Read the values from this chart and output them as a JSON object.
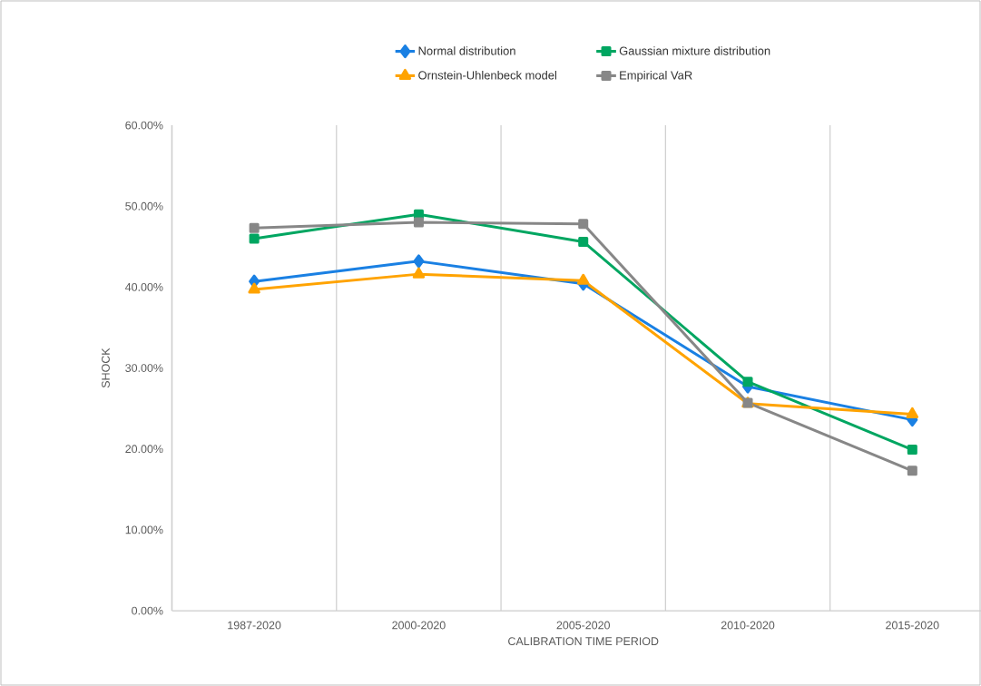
{
  "chart_data": {
    "type": "line",
    "xlabel": "CALIBRATION TIME PERIOD",
    "ylabel": "SHOCK",
    "categories": [
      "1987-2020",
      "2000-2020",
      "2005-2020",
      "2010-2020",
      "2015-2020"
    ],
    "series": [
      {
        "name": "Normal distribution",
        "color": "#1a80e3",
        "marker": "diamond",
        "values": [
          40.7,
          43.2,
          40.4,
          27.7,
          23.6
        ]
      },
      {
        "name": "Gaussian mixture distribution",
        "color": "#00a661",
        "marker": "square",
        "values": [
          46.0,
          49.0,
          45.6,
          28.3,
          19.9
        ]
      },
      {
        "name": "Ornstein-Uhlenbeck model",
        "color": "#ffa300",
        "marker": "triangle",
        "values": [
          39.7,
          41.6,
          40.8,
          25.6,
          24.3
        ]
      },
      {
        "name": "Empirical VaR",
        "color": "#878787",
        "marker": "square",
        "values": [
          47.3,
          48.0,
          47.8,
          25.7,
          17.3
        ]
      }
    ],
    "ylim": [
      0,
      60
    ],
    "yticks": [
      {
        "value": 0,
        "label": "0.00%"
      },
      {
        "value": 10,
        "label": "10.00%"
      },
      {
        "value": 20,
        "label": "20.00%"
      },
      {
        "value": 30,
        "label": "30.00%"
      },
      {
        "value": 40,
        "label": "40.00%"
      },
      {
        "value": 50,
        "label": "50.00%"
      },
      {
        "value": 60,
        "label": "60.00%"
      }
    ],
    "grid": "x",
    "legend": "top",
    "line_style": "solid"
  }
}
